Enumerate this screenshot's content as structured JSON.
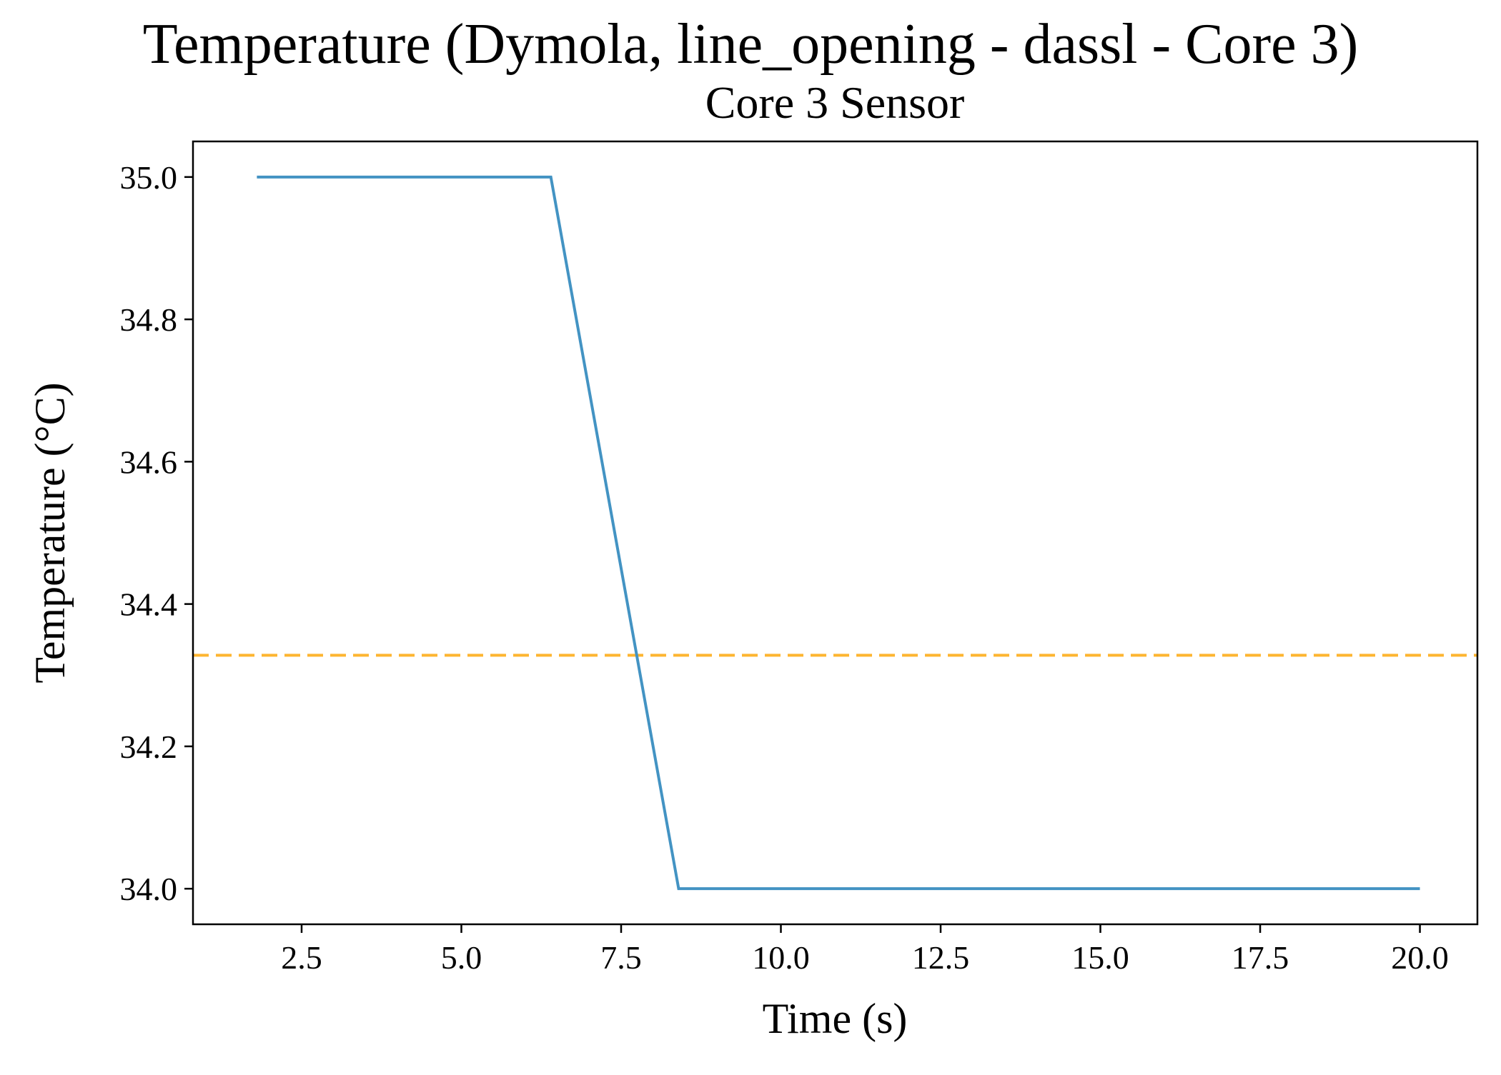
{
  "figure": {
    "suptitle": "Temperature (Dymola, line_opening - dassl - Core 3)"
  },
  "chart_data": {
    "type": "line",
    "title": "Core 3 Sensor",
    "xlabel": "Time (s)",
    "ylabel": "Temperature (°C)",
    "xlim": [
      0.8,
      20.9
    ],
    "ylim": [
      33.95,
      35.05
    ],
    "xticks": [
      2.5,
      5.0,
      7.5,
      10.0,
      12.5,
      15.0,
      17.5,
      20.0
    ],
    "xtick_labels": [
      "2.5",
      "5.0",
      "7.5",
      "10.0",
      "12.5",
      "15.0",
      "17.5",
      "20.0"
    ],
    "yticks": [
      34.0,
      34.2,
      34.4,
      34.6,
      34.8,
      35.0
    ],
    "ytick_labels": [
      "34.0",
      "34.2",
      "34.4",
      "34.6",
      "34.8",
      "35.0"
    ],
    "grid": false,
    "series": [
      {
        "style": "solid",
        "color": "#4393c3",
        "x": [
          1.8,
          6.4,
          8.4,
          20.0
        ],
        "y": [
          35.0,
          35.0,
          34.0,
          34.0
        ]
      }
    ],
    "hlines": [
      {
        "y": 34.328,
        "color": "#fdb531",
        "style": "dashed"
      }
    ]
  }
}
